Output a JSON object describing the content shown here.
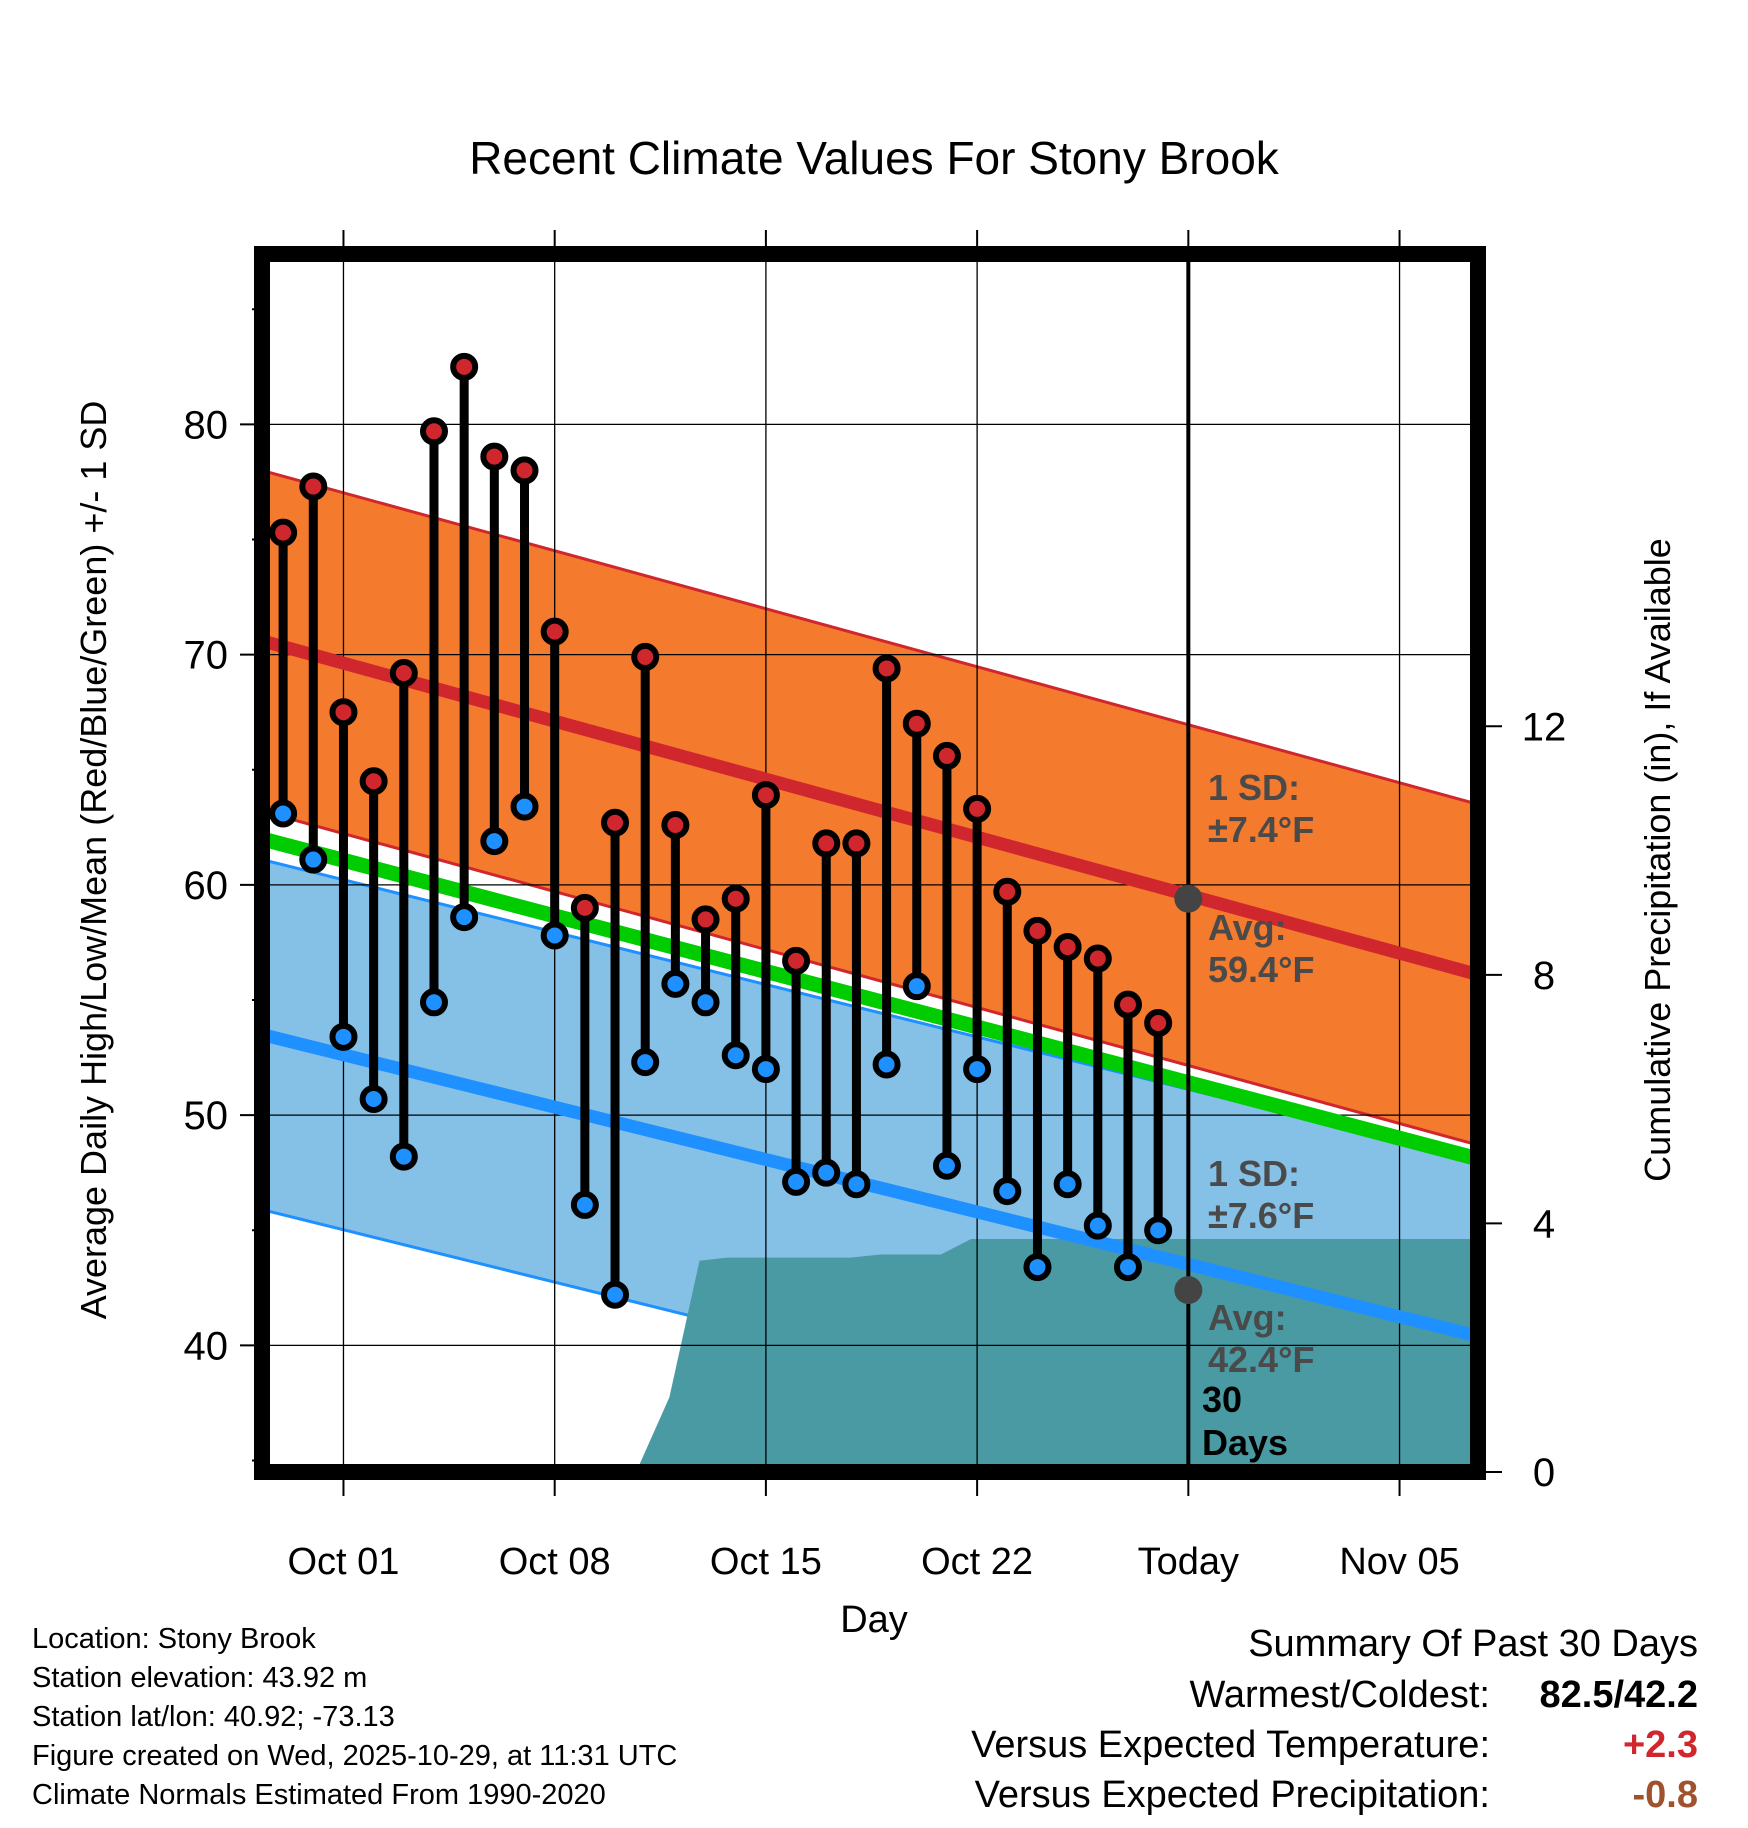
{
  "chart_data": {
    "type": "climate-range",
    "title": "Recent Climate Values For Stony Brook",
    "xlabel": "Day",
    "ylabel_left": "Average Daily High/Low/Mean (Red/Blue/Green) +/- 1 SD",
    "ylabel_right": "Cumulative Precipitation (in), If Available",
    "x_ticks": [
      {
        "day": 3,
        "label": "Oct 01"
      },
      {
        "day": 10,
        "label": "Oct 08"
      },
      {
        "day": 17,
        "label": "Oct 15"
      },
      {
        "day": 24,
        "label": "Oct 22"
      },
      {
        "day": 31,
        "label": "Today"
      },
      {
        "day": 38,
        "label": "Nov 05"
      }
    ],
    "xlim": [
      0.3,
      40.6
    ],
    "ylim_left": [
      34.5,
      87.4
    ],
    "y_ticks_left": [
      40,
      50,
      60,
      70,
      80
    ],
    "ylim_right": [
      0,
      19.6
    ],
    "y_ticks_right": [
      0,
      4,
      8,
      12
    ],
    "today_day": 31,
    "daily_highs": [
      75.3,
      77.3,
      67.5,
      64.5,
      69.2,
      79.7,
      82.5,
      78.6,
      78.0,
      71.0,
      59.0,
      62.7,
      69.9,
      62.6,
      58.5,
      59.4,
      63.9,
      56.7,
      61.8,
      61.8,
      69.4,
      67.0,
      65.6,
      63.3,
      59.7,
      58.0,
      57.3,
      56.8,
      54.8,
      54.0
    ],
    "daily_lows": [
      63.1,
      61.1,
      53.4,
      50.7,
      48.2,
      54.9,
      58.6,
      61.9,
      63.4,
      57.8,
      46.1,
      42.2,
      52.3,
      55.7,
      54.9,
      52.6,
      52.0,
      47.1,
      47.5,
      47.0,
      52.2,
      55.6,
      47.8,
      52.0,
      46.7,
      43.4,
      47.0,
      45.2,
      43.4,
      45.0
    ],
    "normal_high": {
      "start": 70.6,
      "end": 56.1,
      "today": 59.4,
      "sd": 7.4
    },
    "normal_low": {
      "start": 53.5,
      "end": 40.4,
      "today": 42.4,
      "sd": 7.6
    },
    "normal_mean": {
      "start": 62.0,
      "end": 48.1
    },
    "precip_cumulative": [
      {
        "day": 12.7,
        "value": 0
      },
      {
        "day": 13.8,
        "value": 1.2
      },
      {
        "day": 14.8,
        "value": 3.4
      },
      {
        "day": 15.7,
        "value": 3.45
      },
      {
        "day": 19.8,
        "value": 3.45
      },
      {
        "day": 20.8,
        "value": 3.5
      },
      {
        "day": 22.8,
        "value": 3.5
      },
      {
        "day": 23.8,
        "value": 3.75
      },
      {
        "day": 40.6,
        "value": 3.75
      }
    ],
    "annotations": {
      "high_sd_label": "1 SD:",
      "high_sd_value": "±7.4°F",
      "high_avg_label": "Avg:",
      "high_avg_value": "59.4°F",
      "low_sd_label": "1 SD:",
      "low_sd_value": "±7.6°F",
      "low_avg_label": "Avg:",
      "low_avg_value": "42.4°F",
      "period_line1": "30",
      "period_line2": "Days"
    },
    "colors": {
      "high_band": "#f47a2e",
      "high_line": "#d0262d",
      "low_band": "#85c1e7",
      "low_line": "#1e90ff",
      "mean_line": "#00cc00",
      "precip": "#4a9aa4",
      "high_marker": "#d0262d",
      "low_marker": "#1e90ff",
      "today_marker": "#444444",
      "annotation": "#4a4a4a"
    }
  },
  "footer": {
    "location": "Location: Stony Brook",
    "elevation": "Station elevation: 43.92 m",
    "latlon": "Station lat/lon: 40.92; -73.13",
    "created": "Figure created on Wed, 2025-10-29, at 11:31 UTC",
    "normals": "Climate Normals Estimated From 1990-2020"
  },
  "summary": {
    "heading": "Summary Of Past 30 Days",
    "warmest_label": "Warmest/Coldest:",
    "warmest_value": "82.5/42.2",
    "temp_label": "Versus Expected Temperature:",
    "temp_value": "+2.3",
    "temp_color": "#d0262d",
    "precip_label": "Versus Expected Precipitation:",
    "precip_value": "-0.8",
    "precip_color": "#a0522d"
  }
}
